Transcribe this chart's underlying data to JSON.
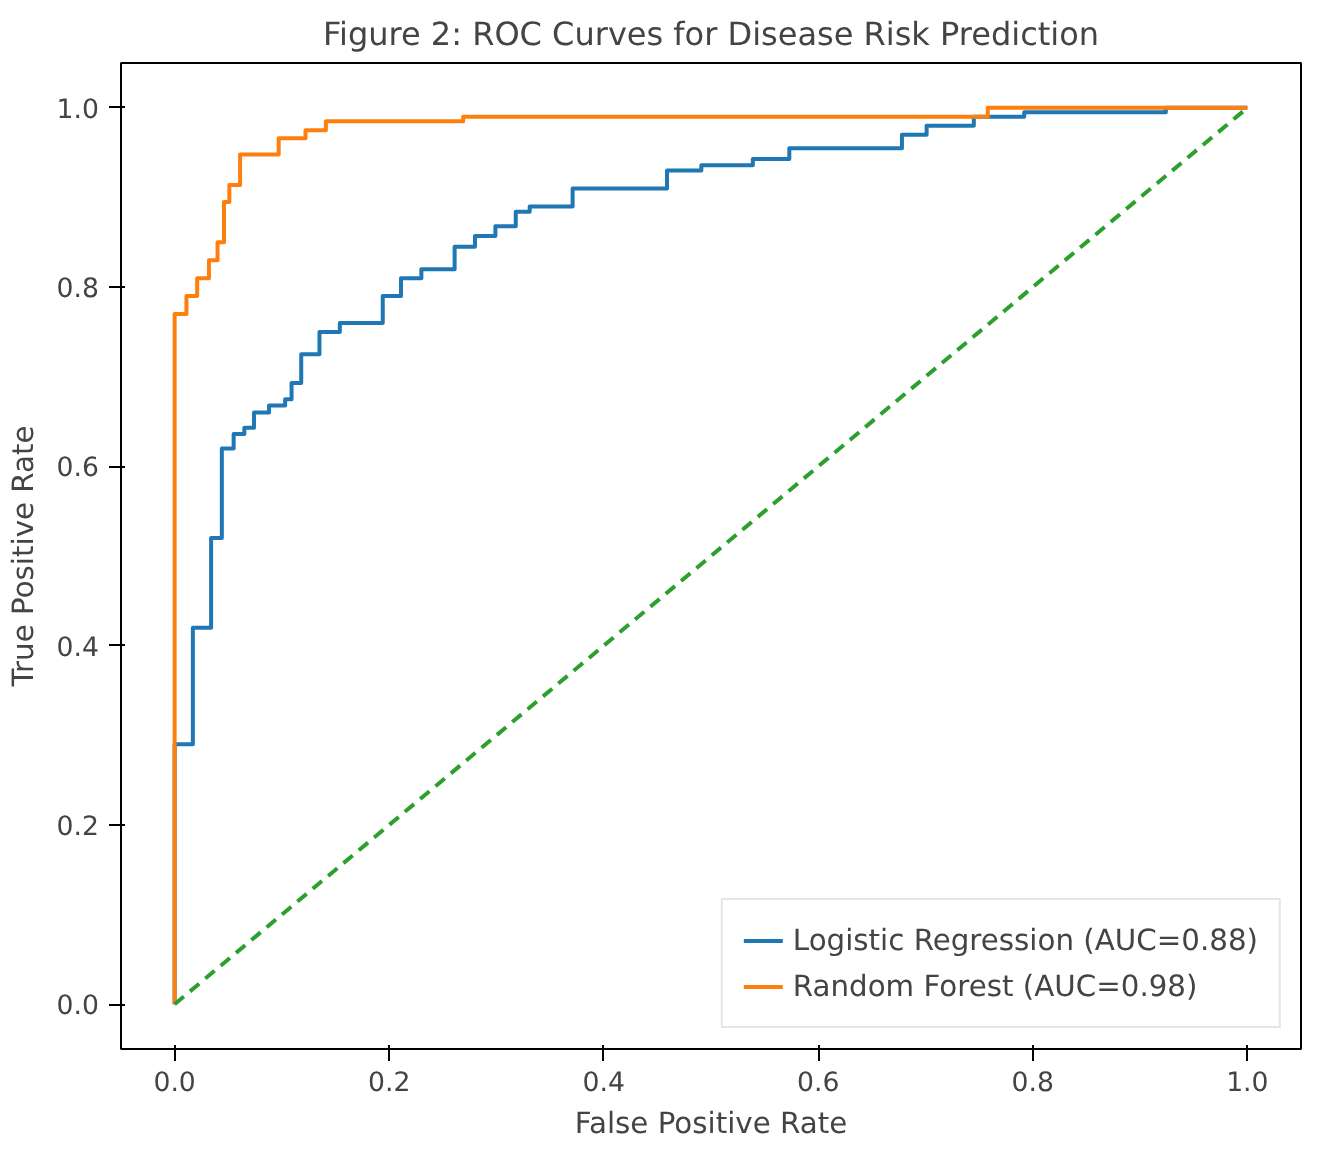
{
  "chart_data": {
    "type": "step",
    "title": "Figure 2: ROC Curves for Disease Risk Prediction",
    "xlabel": "False Positive Rate",
    "ylabel": "True Positive Rate",
    "xlim": [
      -0.05,
      1.05
    ],
    "ylim": [
      -0.05,
      1.05
    ],
    "xticks": [
      {
        "value": 0,
        "label": "0.0"
      },
      {
        "value": 0.2,
        "label": "0.2"
      },
      {
        "value": 0.4,
        "label": "0.4"
      },
      {
        "value": 0.6,
        "label": "0.6"
      },
      {
        "value": 0.8,
        "label": "0.8"
      },
      {
        "value": 1,
        "label": "1.0"
      }
    ],
    "yticks": [
      {
        "value": 0,
        "label": "0.0"
      },
      {
        "value": 0.2,
        "label": "0.2"
      },
      {
        "value": 0.4,
        "label": "0.4"
      },
      {
        "value": 0.6,
        "label": "0.6"
      },
      {
        "value": 0.8,
        "label": "0.8"
      },
      {
        "value": 1,
        "label": "1.0"
      }
    ],
    "grid": false,
    "legend": "bottom right",
    "series": [
      {
        "name": "Logistic Regression (AUC=0.88)",
        "color": "#1f77b4",
        "x": [
          0,
          0,
          0.017,
          0.034,
          0.044,
          0.055,
          0.065,
          0.074,
          0.088,
          0.103,
          0.109,
          0.118,
          0.135,
          0.154,
          0.194,
          0.211,
          0.23,
          0.261,
          0.28,
          0.299,
          0.318,
          0.331,
          0.371,
          0.459,
          0.491,
          0.539,
          0.573,
          0.678,
          0.701,
          0.745,
          0.792,
          0.924,
          1
        ],
        "values": [
          0,
          0.29,
          0.42,
          0.52,
          0.62,
          0.636,
          0.643,
          0.66,
          0.668,
          0.675,
          0.693,
          0.725,
          0.75,
          0.76,
          0.79,
          0.81,
          0.82,
          0.845,
          0.857,
          0.868,
          0.884,
          0.89,
          0.91,
          0.93,
          0.936,
          0.943,
          0.955,
          0.97,
          0.98,
          0.99,
          0.995,
          1,
          1
        ]
      },
      {
        "name": "Random Forest (AUC=0.98)",
        "color": "#ff7f0e",
        "x": [
          0,
          0,
          0.011,
          0.021,
          0.032,
          0.04,
          0.046,
          0.051,
          0.061,
          0.097,
          0.122,
          0.141,
          0.269,
          0.758,
          1
        ],
        "values": [
          0,
          0.77,
          0.79,
          0.81,
          0.83,
          0.85,
          0.895,
          0.914,
          0.948,
          0.966,
          0.975,
          0.985,
          0.99,
          1,
          1
        ]
      },
      {
        "type": "line",
        "color": "#2ca02c",
        "line_style": "dashed",
        "x": [
          0,
          1
        ],
        "values": [
          0,
          1
        ]
      }
    ]
  }
}
